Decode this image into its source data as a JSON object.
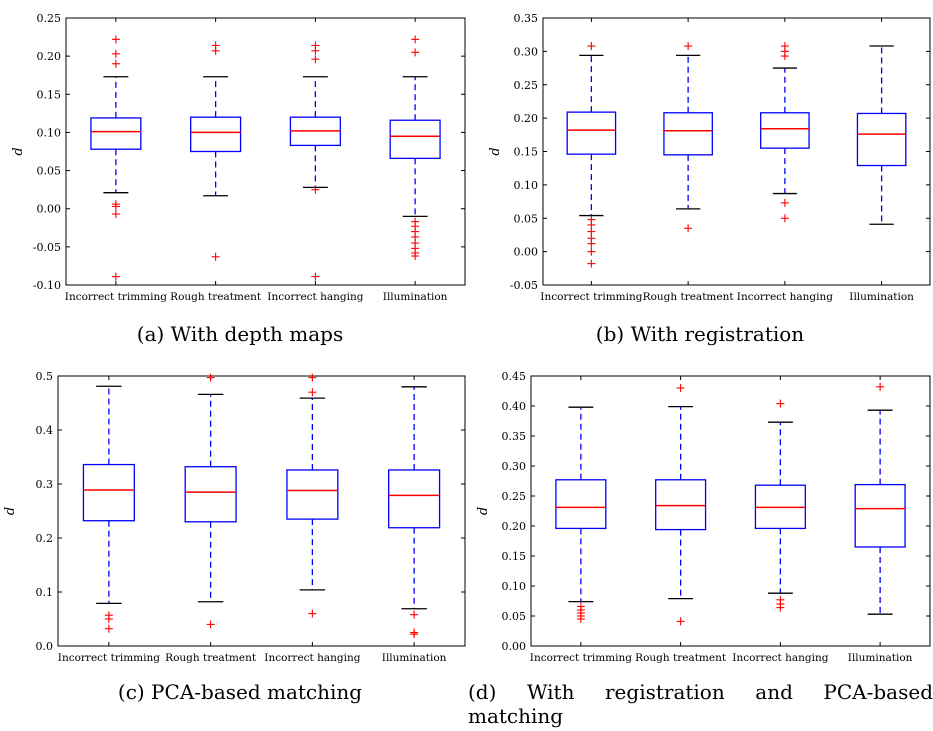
{
  "chart_data": [
    {
      "type": "box",
      "ylabel": "d",
      "ylim": [
        -0.1,
        0.25
      ],
      "yticks": [
        -0.1,
        -0.05,
        0.0,
        0.05,
        0.1,
        0.15,
        0.2,
        0.25
      ],
      "ytick_decimals": 2,
      "categories": [
        "Incorrect trimming",
        "Rough treatment",
        "Incorrect hanging",
        "Illumination"
      ],
      "boxes": [
        {
          "whisker_low": 0.021,
          "q1": 0.078,
          "median": 0.101,
          "q3": 0.119,
          "whisker_high": 0.173,
          "outliers": [
            0.222,
            0.203,
            0.19,
            0.006,
            0.003,
            -0.007,
            -0.089
          ]
        },
        {
          "whisker_low": 0.017,
          "q1": 0.075,
          "median": 0.1,
          "q3": 0.12,
          "whisker_high": 0.173,
          "outliers": [
            0.214,
            0.207,
            -0.063
          ]
        },
        {
          "whisker_low": 0.028,
          "q1": 0.083,
          "median": 0.102,
          "q3": 0.12,
          "whisker_high": 0.173,
          "outliers": [
            0.214,
            0.207,
            0.196,
            0.025,
            -0.089
          ]
        },
        {
          "whisker_low": -0.01,
          "q1": 0.066,
          "median": 0.095,
          "q3": 0.116,
          "whisker_high": 0.173,
          "outliers": [
            0.222,
            0.205,
            -0.017,
            -0.023,
            -0.03,
            -0.037,
            -0.045,
            -0.052,
            -0.058,
            -0.062
          ]
        }
      ]
    },
    {
      "type": "box",
      "ylabel": "d",
      "ylim": [
        -0.05,
        0.35
      ],
      "yticks": [
        -0.05,
        0.0,
        0.05,
        0.1,
        0.15,
        0.2,
        0.25,
        0.3,
        0.35
      ],
      "ytick_decimals": 2,
      "categories": [
        "Incorrect trimming",
        "Rough treatment",
        "Incorrect hanging",
        "Illumination"
      ],
      "boxes": [
        {
          "whisker_low": 0.054,
          "q1": 0.146,
          "median": 0.182,
          "q3": 0.209,
          "whisker_high": 0.294,
          "outliers": [
            0.308,
            0.048,
            0.04,
            0.03,
            0.02,
            0.012,
            0.0,
            -0.018
          ]
        },
        {
          "whisker_low": 0.064,
          "q1": 0.145,
          "median": 0.181,
          "q3": 0.208,
          "whisker_high": 0.294,
          "outliers": [
            0.308,
            0.035
          ]
        },
        {
          "whisker_low": 0.087,
          "q1": 0.155,
          "median": 0.184,
          "q3": 0.208,
          "whisker_high": 0.275,
          "outliers": [
            0.308,
            0.3,
            0.293,
            0.073,
            0.05
          ]
        },
        {
          "whisker_low": 0.041,
          "q1": 0.129,
          "median": 0.176,
          "q3": 0.207,
          "whisker_high": 0.308,
          "outliers": []
        }
      ]
    },
    {
      "type": "box",
      "ylabel": "d",
      "ylim": [
        0.0,
        0.5
      ],
      "yticks": [
        0.0,
        0.1,
        0.2,
        0.3,
        0.4,
        0.5
      ],
      "ytick_decimals": 1,
      "categories": [
        "Incorrect trimming",
        "Rough treatment",
        "Incorrect hanging",
        "Illumination"
      ],
      "boxes": [
        {
          "whisker_low": 0.079,
          "q1": 0.232,
          "median": 0.289,
          "q3": 0.336,
          "whisker_high": 0.481,
          "outliers": [
            0.057,
            0.05,
            0.032
          ]
        },
        {
          "whisker_low": 0.082,
          "q1": 0.23,
          "median": 0.285,
          "q3": 0.332,
          "whisker_high": 0.466,
          "outliers": [
            0.497,
            0.04
          ]
        },
        {
          "whisker_low": 0.104,
          "q1": 0.235,
          "median": 0.288,
          "q3": 0.326,
          "whisker_high": 0.459,
          "outliers": [
            0.497,
            0.47,
            0.06
          ]
        },
        {
          "whisker_low": 0.069,
          "q1": 0.219,
          "median": 0.279,
          "q3": 0.326,
          "whisker_high": 0.48,
          "outliers": [
            0.058,
            0.025,
            0.022
          ]
        }
      ]
    },
    {
      "type": "box",
      "ylabel": "d",
      "ylim": [
        0.0,
        0.45
      ],
      "yticks": [
        0.0,
        0.05,
        0.1,
        0.15,
        0.2,
        0.25,
        0.3,
        0.35,
        0.4,
        0.45
      ],
      "ytick_decimals": 2,
      "categories": [
        "Incorrect trimming",
        "Rough treatment",
        "Incorrect hanging",
        "Illumination"
      ],
      "boxes": [
        {
          "whisker_low": 0.074,
          "q1": 0.196,
          "median": 0.231,
          "q3": 0.277,
          "whisker_high": 0.398,
          "outliers": [
            0.066,
            0.06,
            0.055,
            0.05,
            0.045
          ]
        },
        {
          "whisker_low": 0.079,
          "q1": 0.194,
          "median": 0.234,
          "q3": 0.277,
          "whisker_high": 0.399,
          "outliers": [
            0.43,
            0.041
          ]
        },
        {
          "whisker_low": 0.088,
          "q1": 0.196,
          "median": 0.231,
          "q3": 0.268,
          "whisker_high": 0.373,
          "outliers": [
            0.404,
            0.077,
            0.07,
            0.064
          ]
        },
        {
          "whisker_low": 0.053,
          "q1": 0.165,
          "median": 0.229,
          "q3": 0.269,
          "whisker_high": 0.393,
          "outliers": [
            0.432
          ]
        }
      ]
    }
  ],
  "captions": [
    "(a) With depth maps",
    "(b) With registration",
    "(c) PCA-based matching",
    "(d) With registration and PCA-based matching"
  ],
  "colors": {
    "box": "#0000ff",
    "median": "#ff0000",
    "outlier": "#ff0000",
    "cap": "#000000",
    "axes": "#000000"
  }
}
